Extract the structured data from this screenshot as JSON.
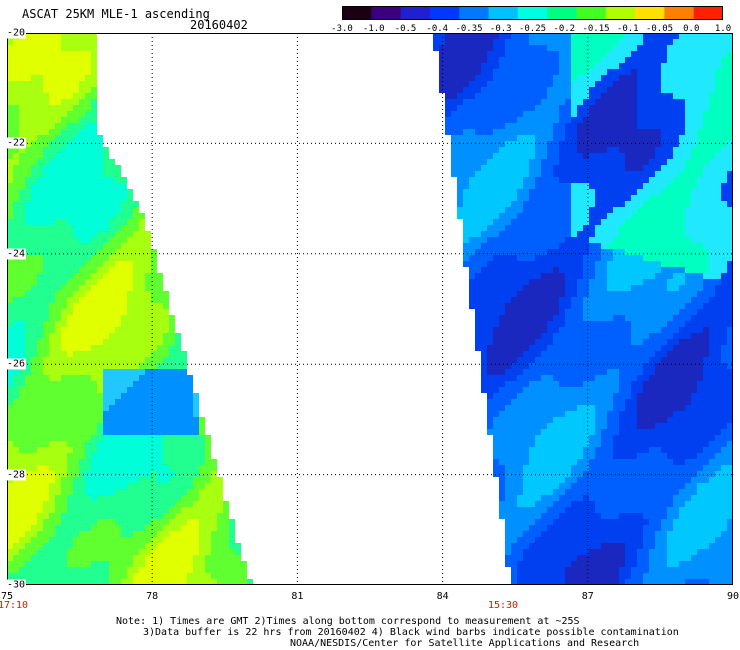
{
  "title": "ASCAT 25KM MLE-1 ascending",
  "date": "20160402",
  "colorbar": {
    "labels": [
      "-3.0",
      "-1.0",
      "-0.5",
      "-0.4",
      "-0.35",
      "-0.3",
      "-0.25",
      "-0.2",
      "-0.15",
      "-0.1",
      "-0.05",
      "0.0",
      "1.0"
    ],
    "colors": [
      "#1a0010",
      "#3b0080",
      "#2020d0",
      "#0038ff",
      "#0078ff",
      "#00c0ff",
      "#00ffe0",
      "#00ff80",
      "#40ff20",
      "#b0ff00",
      "#ffe000",
      "#ff8000",
      "#ff2000"
    ]
  },
  "axes": {
    "x_ticks": [
      "75",
      "78",
      "81",
      "84",
      "87",
      "90"
    ],
    "y_ticks": [
      "-20",
      "-22",
      "-24",
      "-26",
      "-28",
      "-30"
    ]
  },
  "times": {
    "left": "17:10",
    "right": "15:30"
  },
  "notes": {
    "line1": "Note: 1) Times are GMT 2)Times along bottom correspond to measurement at ~25S",
    "line2": "3)Data buffer is 22 hrs from 20160402 4) Black wind barbs indicate possible contamination",
    "line3": "NOAA/NESDIS/Center for Satellite Applications and Research"
  }
}
